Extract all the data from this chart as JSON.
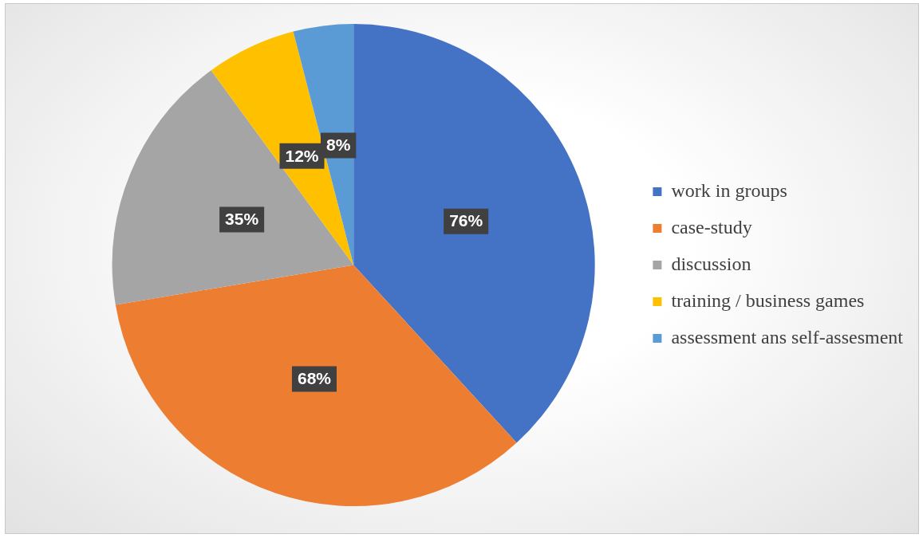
{
  "chart_data": {
    "type": "pie",
    "categories": [
      "work in groups",
      "case-study",
      "discussion",
      "training / business games",
      "assessment ans self-assesment"
    ],
    "values": [
      76,
      68,
      35,
      12,
      8
    ],
    "colors": [
      "#4472c4",
      "#ed7d31",
      "#a5a5a5",
      "#ffc000",
      "#5b9bd5"
    ],
    "value_labels": [
      "76%",
      "68%",
      "35%",
      "12%",
      "8%"
    ],
    "legend": "right"
  }
}
